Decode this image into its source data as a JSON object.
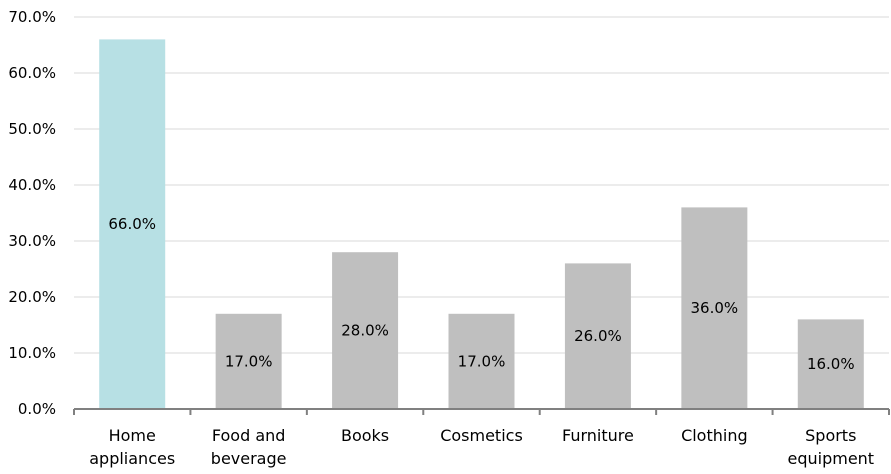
{
  "chart_data": {
    "type": "bar",
    "categories": [
      [
        "Home",
        "appliances"
      ],
      [
        "Food and",
        "beverage"
      ],
      [
        "Books"
      ],
      [
        "Cosmetics"
      ],
      [
        "Furniture"
      ],
      [
        "Clothing"
      ],
      [
        "Sports",
        "equipment"
      ]
    ],
    "values": [
      66.0,
      17.0,
      28.0,
      17.0,
      26.0,
      36.0,
      16.0
    ],
    "data_labels": [
      "66.0%",
      "17.0%",
      "28.0%",
      "17.0%",
      "26.0%",
      "36.0%",
      "16.0%"
    ],
    "y_ticks": [
      "0.0%",
      "10.0%",
      "20.0%",
      "30.0%",
      "40.0%",
      "50.0%",
      "60.0%",
      "70.0%"
    ],
    "ylim": [
      0,
      70
    ],
    "grid": true,
    "legend": "none",
    "highlight_index": 0,
    "colors": {
      "highlight": "#b7e0e4",
      "bar": "#bfbfbf",
      "grid": "#d9d9d9",
      "axis": "#808080"
    }
  }
}
